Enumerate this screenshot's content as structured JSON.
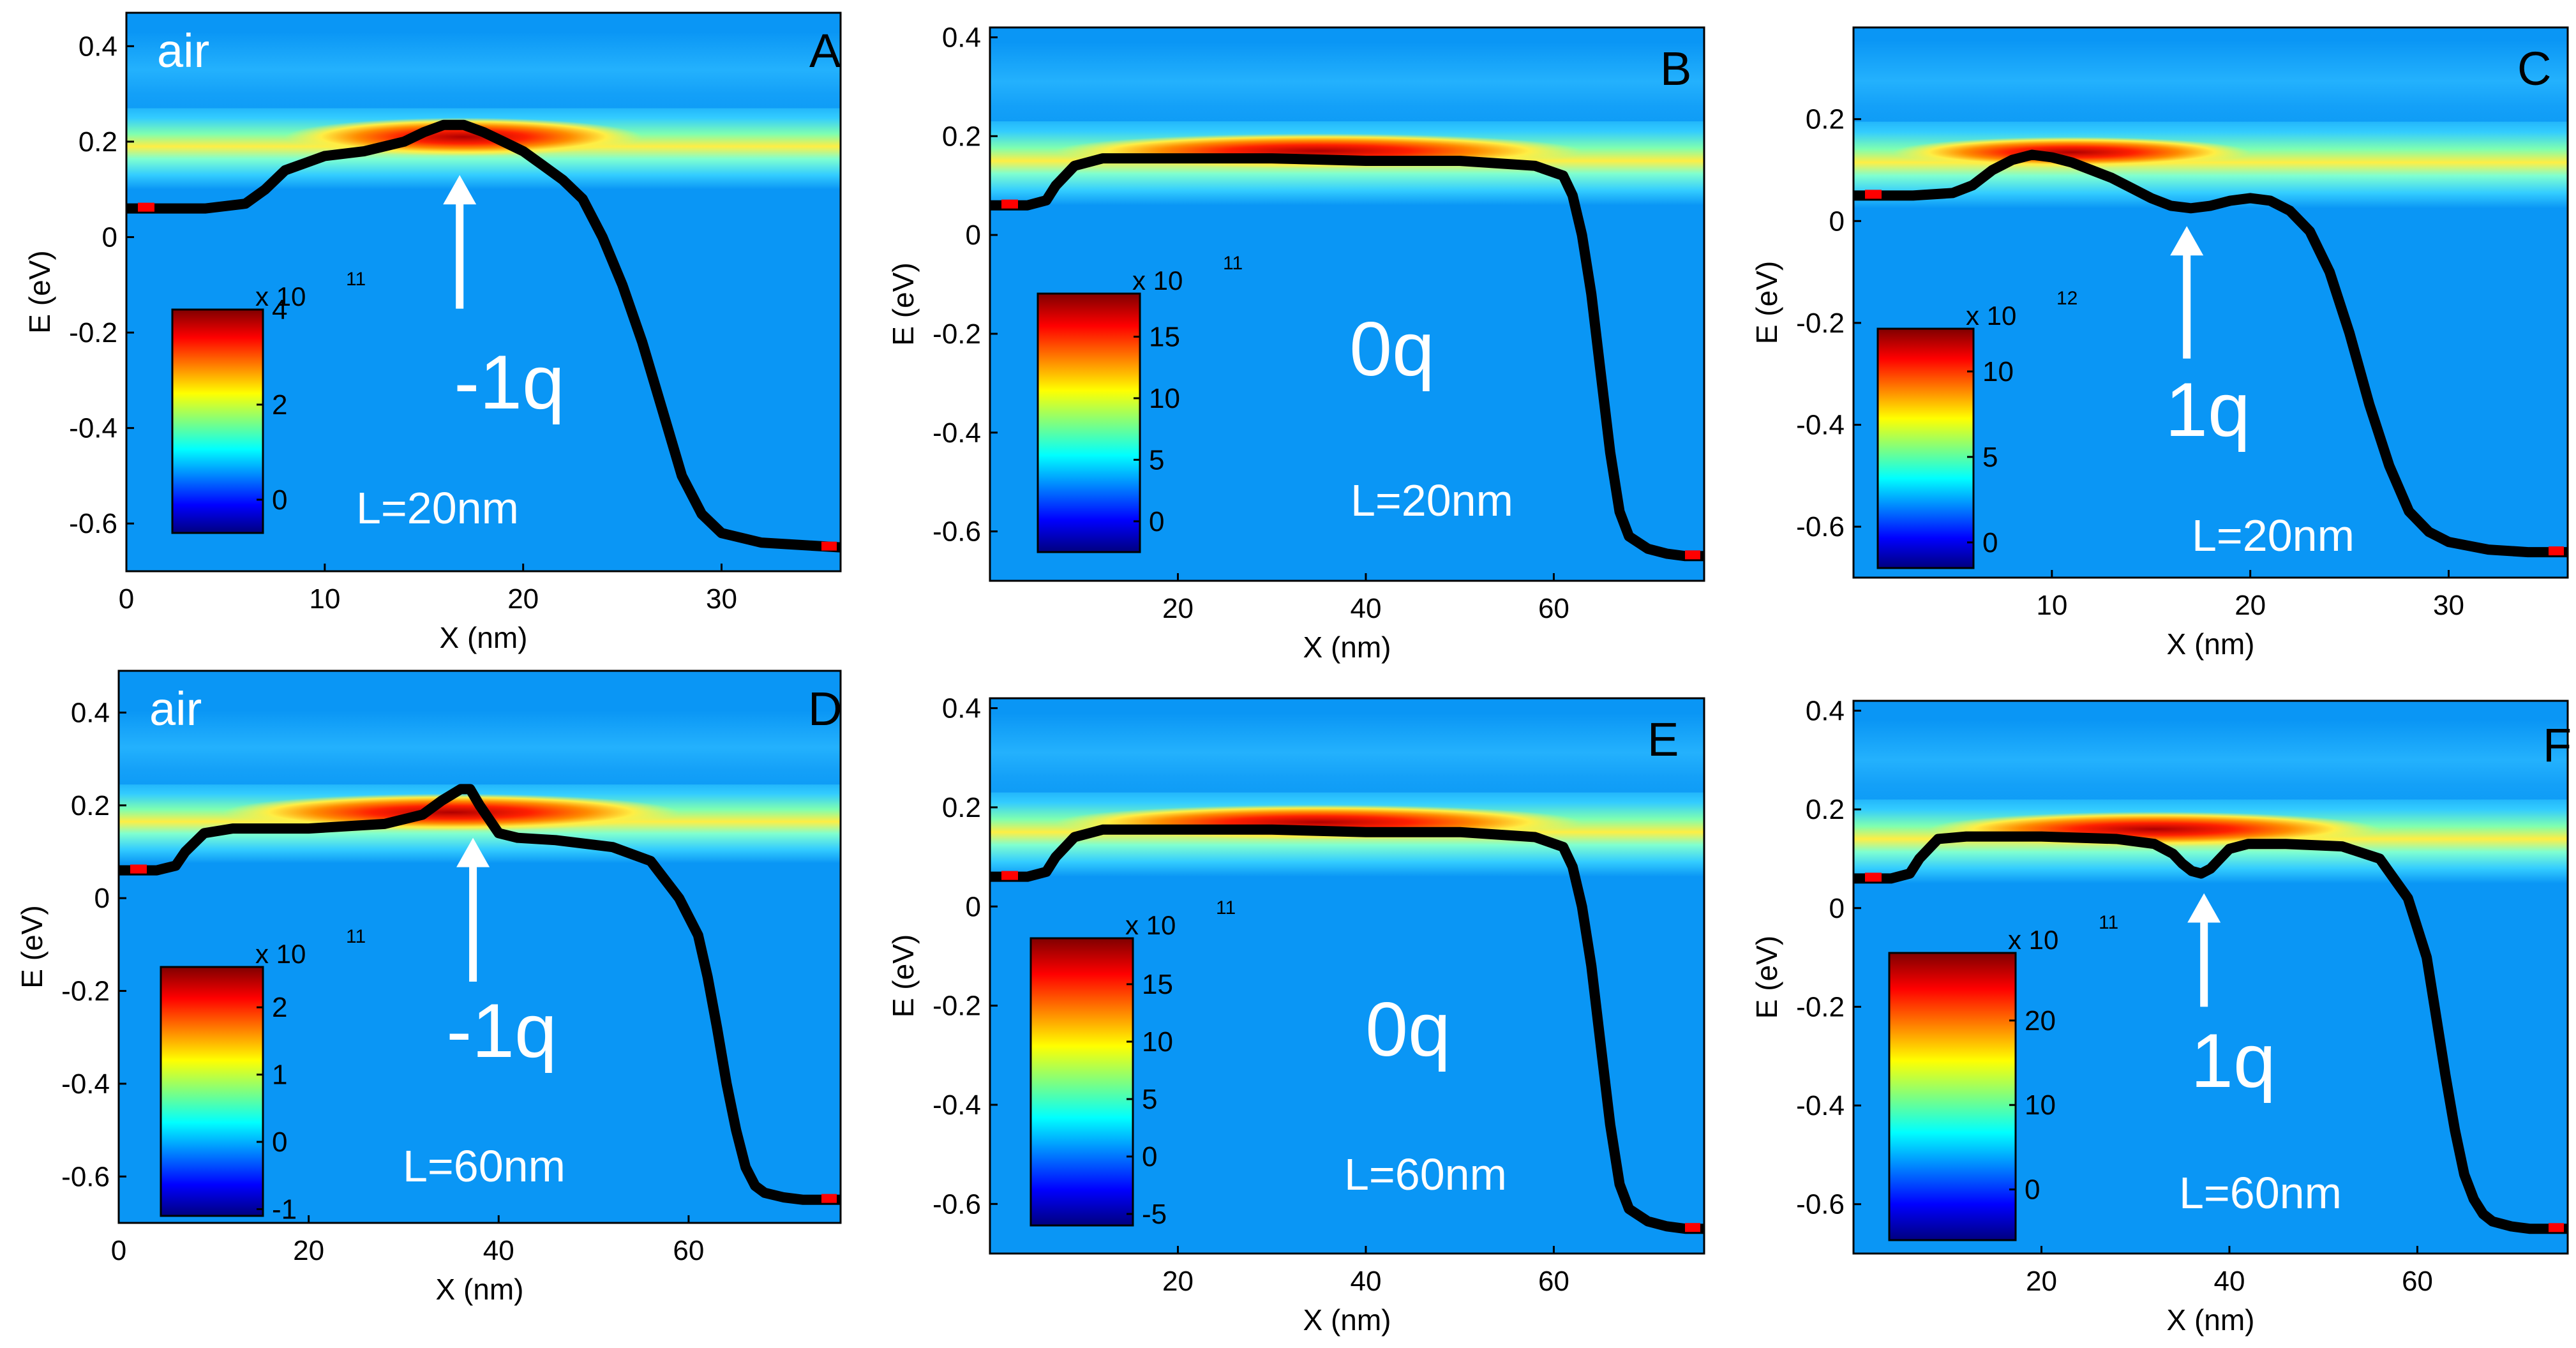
{
  "chart_data": [
    {
      "type": "heatmap",
      "panel": "A",
      "xlabel": "X (nm)",
      "ylabel": "E (eV)",
      "xlim": [
        0,
        36
      ],
      "ylim": [
        -0.7,
        0.47
      ],
      "xticks": [
        0,
        10,
        20,
        30
      ],
      "yticks": [
        0.4,
        0.2,
        0,
        -0.2,
        -0.4,
        -0.6
      ],
      "medium_label": "air",
      "charge_label": "-1q",
      "length_label": "L=20nm",
      "colorbar": {
        "exponent": "x 10",
        "power": "11",
        "min": -0.7,
        "max": 4,
        "ticks": [
          4,
          2,
          0
        ]
      },
      "band_edge": {
        "x": [
          0,
          2,
          4,
          6,
          7,
          8,
          10,
          12,
          14,
          15,
          16,
          17,
          18,
          19,
          20,
          21,
          22,
          23,
          24,
          25,
          26,
          27,
          28,
          29,
          30,
          32,
          34,
          36
        ],
        "y": [
          0.06,
          0.06,
          0.06,
          0.07,
          0.1,
          0.14,
          0.17,
          0.18,
          0.2,
          0.22,
          0.235,
          0.235,
          0.22,
          0.2,
          0.18,
          0.15,
          0.12,
          0.08,
          0.0,
          -0.1,
          -0.22,
          -0.36,
          -0.5,
          -0.58,
          -0.62,
          -0.64,
          -0.645,
          -0.65
        ]
      },
      "hot_band": {
        "center": 0.21,
        "width": 0.04,
        "x_center": 17,
        "x_spread": 9
      },
      "arrow": {
        "x": 16.8,
        "tip": 0.13,
        "tail": -0.15
      }
    },
    {
      "type": "heatmap",
      "panel": "B",
      "xlabel": "X (nm)",
      "ylabel": "E (eV)",
      "xlim": [
        0,
        76
      ],
      "ylim": [
        -0.7,
        0.42
      ],
      "xticks": [
        20,
        40,
        60
      ],
      "yticks": [
        0.4,
        0.2,
        0,
        -0.2,
        -0.4,
        -0.6
      ],
      "medium_label": "",
      "charge_label": "0q",
      "length_label": "L=20nm",
      "colorbar": {
        "exponent": "x 10",
        "power": "11",
        "min": -2.5,
        "max": 18.5,
        "ticks": [
          15,
          10,
          5,
          0
        ]
      },
      "band_edge": {
        "x": [
          0,
          4,
          6,
          7,
          9,
          12,
          20,
          30,
          40,
          50,
          58,
          61,
          62,
          63,
          64,
          65,
          66,
          67,
          68,
          70,
          72,
          74,
          76
        ],
        "y": [
          0.06,
          0.06,
          0.07,
          0.1,
          0.14,
          0.155,
          0.155,
          0.155,
          0.15,
          0.15,
          0.14,
          0.12,
          0.08,
          0.0,
          -0.12,
          -0.28,
          -0.44,
          -0.56,
          -0.61,
          -0.635,
          -0.645,
          -0.65,
          -0.65
        ]
      },
      "hot_band": {
        "center": 0.17,
        "width": 0.035,
        "x_center": 35,
        "x_spread": 28
      },
      "arrow": null
    },
    {
      "type": "heatmap",
      "panel": "C",
      "xlabel": "X (nm)",
      "ylabel": "E (eV)",
      "xlim": [
        0,
        36
      ],
      "ylim": [
        -0.7,
        0.38
      ],
      "xticks": [
        10,
        20,
        30
      ],
      "yticks": [
        0.2,
        0,
        -0.2,
        -0.4,
        -0.6
      ],
      "medium_label": "",
      "charge_label": "1q",
      "length_label": "L=20nm",
      "colorbar": {
        "exponent": "x 10",
        "power": "12",
        "min": -1.5,
        "max": 12.5,
        "ticks": [
          10,
          5,
          0
        ]
      },
      "band_edge": {
        "x": [
          0,
          3,
          5,
          6,
          7,
          8,
          9,
          10,
          11,
          12,
          13,
          14,
          15,
          16,
          17,
          18,
          19,
          20,
          21,
          22,
          23,
          24,
          25,
          26,
          27,
          28,
          29,
          30,
          32,
          34,
          36
        ],
        "y": [
          0.05,
          0.05,
          0.055,
          0.07,
          0.1,
          0.12,
          0.13,
          0.125,
          0.115,
          0.1,
          0.085,
          0.065,
          0.045,
          0.03,
          0.025,
          0.03,
          0.04,
          0.045,
          0.04,
          0.02,
          -0.02,
          -0.1,
          -0.22,
          -0.36,
          -0.48,
          -0.57,
          -0.61,
          -0.63,
          -0.645,
          -0.65,
          -0.65
        ]
      },
      "hot_band": {
        "center": 0.135,
        "width": 0.03,
        "x_center": 11,
        "x_spread": 9
      },
      "arrow": {
        "x": 16.8,
        "tip": -0.01,
        "tail": -0.27
      }
    },
    {
      "type": "heatmap",
      "panel": "D",
      "xlabel": "X (nm)",
      "ylabel": "E (eV)",
      "xlim": [
        0,
        76
      ],
      "ylim": [
        -0.7,
        0.49
      ],
      "xticks": [
        0,
        20,
        40,
        60
      ],
      "yticks": [
        0.4,
        0.2,
        0,
        -0.2,
        -0.4,
        -0.6
      ],
      "medium_label": "air",
      "charge_label": "-1q",
      "length_label": "L=60nm",
      "colorbar": {
        "exponent": "x 10",
        "power": "11",
        "min": -1.1,
        "max": 2.6,
        "ticks": [
          2,
          1,
          0,
          -1
        ]
      },
      "band_edge": {
        "x": [
          0,
          4,
          6,
          7,
          9,
          12,
          20,
          28,
          32,
          34,
          36,
          37,
          38,
          40,
          42,
          46,
          52,
          56,
          59,
          61,
          62,
          63,
          64,
          65,
          66,
          67,
          68,
          70,
          72,
          74,
          76
        ],
        "y": [
          0.06,
          0.06,
          0.07,
          0.1,
          0.14,
          0.15,
          0.15,
          0.16,
          0.18,
          0.21,
          0.235,
          0.235,
          0.2,
          0.14,
          0.13,
          0.125,
          0.11,
          0.08,
          0.0,
          -0.08,
          -0.17,
          -0.28,
          -0.4,
          -0.5,
          -0.58,
          -0.62,
          -0.635,
          -0.645,
          -0.65,
          -0.65,
          -0.65
        ]
      },
      "hot_band": {
        "center": 0.185,
        "width": 0.04,
        "x_center": 35,
        "x_spread": 24
      },
      "arrow": {
        "x": 37.3,
        "tip": 0.13,
        "tail": -0.18
      }
    },
    {
      "type": "heatmap",
      "panel": "E",
      "xlabel": "X (nm)",
      "ylabel": "E (eV)",
      "xlim": [
        0,
        76
      ],
      "ylim": [
        -0.7,
        0.42
      ],
      "xticks": [
        20,
        40,
        60
      ],
      "yticks": [
        0.4,
        0.2,
        0,
        -0.2,
        -0.4,
        -0.6
      ],
      "medium_label": "",
      "charge_label": "0q",
      "length_label": "L=60nm",
      "colorbar": {
        "exponent": "x 10",
        "power": "11",
        "min": -6,
        "max": 19,
        "ticks": [
          15,
          10,
          5,
          0,
          -5
        ]
      },
      "band_edge": {
        "x": [
          0,
          4,
          6,
          7,
          9,
          12,
          20,
          30,
          40,
          50,
          58,
          61,
          62,
          63,
          64,
          65,
          66,
          67,
          68,
          70,
          72,
          74,
          76
        ],
        "y": [
          0.06,
          0.06,
          0.07,
          0.1,
          0.14,
          0.155,
          0.155,
          0.155,
          0.15,
          0.15,
          0.14,
          0.12,
          0.08,
          0.0,
          -0.12,
          -0.28,
          -0.44,
          -0.56,
          -0.61,
          -0.635,
          -0.645,
          -0.65,
          -0.65
        ]
      },
      "hot_band": {
        "center": 0.17,
        "width": 0.035,
        "x_center": 35,
        "x_spread": 28
      },
      "arrow": null
    },
    {
      "type": "heatmap",
      "panel": "F",
      "xlabel": "X (nm)",
      "ylabel": "E (eV)",
      "xlim": [
        0,
        76
      ],
      "ylim": [
        -0.7,
        0.42
      ],
      "xticks": [
        20,
        40,
        60
      ],
      "yticks": [
        0.4,
        0.2,
        0,
        -0.2,
        -0.4,
        -0.6
      ],
      "medium_label": "",
      "charge_label": "1q",
      "length_label": "L=60nm",
      "colorbar": {
        "exponent": "x 10",
        "power": "11",
        "min": -6,
        "max": 28,
        "ticks": [
          20,
          10,
          0
        ]
      },
      "band_edge": {
        "x": [
          0,
          4,
          6,
          7,
          9,
          12,
          20,
          28,
          32,
          34,
          35,
          36,
          37,
          38,
          39,
          40,
          42,
          46,
          52,
          56,
          59,
          61,
          62,
          63,
          64,
          65,
          66,
          67,
          68,
          70,
          72,
          74,
          76
        ],
        "y": [
          0.06,
          0.06,
          0.07,
          0.1,
          0.14,
          0.145,
          0.145,
          0.14,
          0.13,
          0.11,
          0.09,
          0.075,
          0.07,
          0.08,
          0.1,
          0.12,
          0.13,
          0.13,
          0.125,
          0.1,
          0.02,
          -0.1,
          -0.22,
          -0.34,
          -0.45,
          -0.54,
          -0.59,
          -0.62,
          -0.635,
          -0.645,
          -0.65,
          -0.65,
          -0.65
        ]
      },
      "hot_band": {
        "center": 0.16,
        "width": 0.035,
        "x_center": 32,
        "x_spread": 24
      },
      "arrow": {
        "x": 37.3,
        "tip": 0.03,
        "tail": -0.2
      }
    }
  ],
  "palette": {
    "background": "#0a96f5",
    "jet": [
      "#00007f",
      "#0000ff",
      "#007fff",
      "#00ffff",
      "#7fff7f",
      "#ffff00",
      "#ff7f00",
      "#ff0000",
      "#7f0000"
    ],
    "curve": "#000000",
    "label": "#ffffff",
    "marker": "#ff0000"
  }
}
